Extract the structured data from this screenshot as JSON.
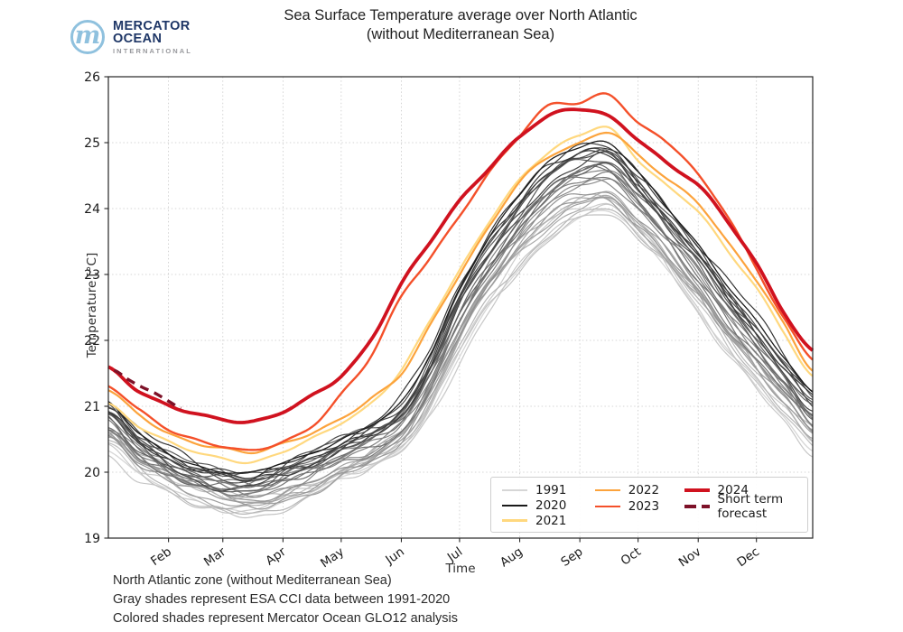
{
  "logo": {
    "monogram": "m",
    "name_line1": "MERCATOR",
    "name_line2": "OCEAN",
    "name_line3": "INTERNATIONAL"
  },
  "title": {
    "line1": "Sea Surface Temperature average over North Atlantic",
    "line2": "(without Mediterranean Sea)"
  },
  "footer": {
    "lines": [
      "North Atlantic zone (without Mediterranean Sea)",
      "Gray shades represent ESA CCI data between 1991-2020",
      "Colored shades represent Mercator Ocean GLO12 analysis"
    ]
  },
  "chart_data": {
    "type": "line",
    "title": "Sea Surface Temperature average over North Atlantic (without Mediterranean Sea)",
    "xlabel": "Time",
    "ylabel": "Temperature [°C]",
    "ylim": [
      19,
      26
    ],
    "y_ticks": [
      26,
      25,
      24,
      23,
      22,
      21,
      20,
      19
    ],
    "x_ticks": [
      {
        "label": "Feb",
        "day": 31
      },
      {
        "label": "Mar",
        "day": 59
      },
      {
        "label": "Apr",
        "day": 90
      },
      {
        "label": "May",
        "day": 120
      },
      {
        "label": "Jun",
        "day": 151
      },
      {
        "label": "Jul",
        "day": 181
      },
      {
        "label": "Aug",
        "day": 212
      },
      {
        "label": "Sep",
        "day": 243
      },
      {
        "label": "Oct",
        "day": 273
      },
      {
        "label": "Nov",
        "day": 304
      },
      {
        "label": "Dec",
        "day": 334
      }
    ],
    "x_range_days": [
      0,
      363
    ],
    "grid": true,
    "legend_position": "lower right inside",
    "keypoint_days": [
      0,
      15,
      31,
      46,
      59,
      74,
      90,
      105,
      120,
      135,
      151,
      166,
      181,
      196,
      212,
      227,
      243,
      258,
      273,
      288,
      304,
      319,
      334,
      349,
      363
    ],
    "series": [
      {
        "name": "1991",
        "color": "#d6d6d6",
        "lw": 1.3,
        "dashed": false,
        "values": [
          20.35,
          20.0,
          19.75,
          19.55,
          19.45,
          19.4,
          19.55,
          19.7,
          19.9,
          20.1,
          20.35,
          20.9,
          21.75,
          22.5,
          23.1,
          23.55,
          23.85,
          23.95,
          23.6,
          23.1,
          22.45,
          21.85,
          21.3,
          20.8,
          20.35
        ]
      },
      {
        "name": "2020",
        "color": "#1a1a1a",
        "lw": 1.3,
        "dashed": false,
        "values": [
          21.05,
          20.6,
          20.3,
          20.1,
          20.0,
          19.98,
          20.15,
          20.3,
          20.5,
          20.7,
          21.05,
          21.8,
          22.8,
          23.55,
          24.2,
          24.7,
          24.95,
          25.0,
          24.55,
          24.0,
          23.45,
          22.85,
          22.3,
          21.7,
          21.2
        ]
      },
      {
        "name": "2021",
        "color": "#ffd87e",
        "lw": 2.2,
        "dashed": false,
        "values": [
          21.05,
          20.7,
          20.45,
          20.3,
          20.22,
          20.16,
          20.3,
          20.5,
          20.75,
          21.05,
          21.55,
          22.3,
          23.05,
          23.8,
          24.45,
          24.85,
          25.1,
          25.22,
          24.75,
          24.35,
          23.95,
          23.35,
          22.8,
          22.1,
          21.45
        ]
      },
      {
        "name": "2022",
        "color": "#fca33c",
        "lw": 2.2,
        "dashed": false,
        "values": [
          21.25,
          20.9,
          20.6,
          20.42,
          20.35,
          20.3,
          20.45,
          20.6,
          20.8,
          21.1,
          21.5,
          22.25,
          23.0,
          23.7,
          24.4,
          24.8,
          25.0,
          25.15,
          24.8,
          24.45,
          24.1,
          23.5,
          22.9,
          22.2,
          21.55
        ]
      },
      {
        "name": "2023",
        "color": "#f4502a",
        "lw": 2.4,
        "dashed": false,
        "values": [
          21.3,
          20.95,
          20.65,
          20.5,
          20.4,
          20.32,
          20.45,
          20.7,
          21.2,
          21.75,
          22.65,
          23.25,
          23.9,
          24.55,
          25.1,
          25.55,
          25.6,
          25.75,
          25.3,
          25.0,
          24.5,
          23.9,
          23.1,
          22.3,
          21.7
        ]
      },
      {
        "name": "2024",
        "color": "#d0121f",
        "lw": 3.8,
        "dashed": false,
        "values": [
          21.6,
          21.25,
          21.0,
          20.87,
          20.8,
          20.78,
          20.92,
          21.15,
          21.45,
          22.0,
          22.87,
          23.5,
          24.1,
          24.6,
          25.1,
          25.42,
          25.5,
          25.38,
          25.05,
          24.7,
          24.36,
          23.8,
          23.15,
          22.4,
          21.85
        ]
      },
      {
        "name": "Short term forecast",
        "color": "#7d1128",
        "lw": 3.4,
        "dashed": true,
        "days": [
          3,
          10,
          17,
          24,
          31,
          38
        ],
        "values": [
          21.55,
          21.42,
          21.3,
          21.2,
          21.08,
          20.97
        ]
      }
    ],
    "gray_ensemble": {
      "description": "ESA CCI yearly curves 1992-2019, spanning between the 1991 (lightest) and 2020 (darkest) reference curves",
      "year_start": 1992,
      "year_end": 2019,
      "color_light": "#d2d2d2",
      "color_dark": "#2e2e2e"
    },
    "legend": {
      "columns": [
        [
          "1991",
          "2020",
          "2021"
        ],
        [
          "2022",
          "2023"
        ],
        [
          "2024",
          "Short term forecast"
        ]
      ]
    }
  }
}
